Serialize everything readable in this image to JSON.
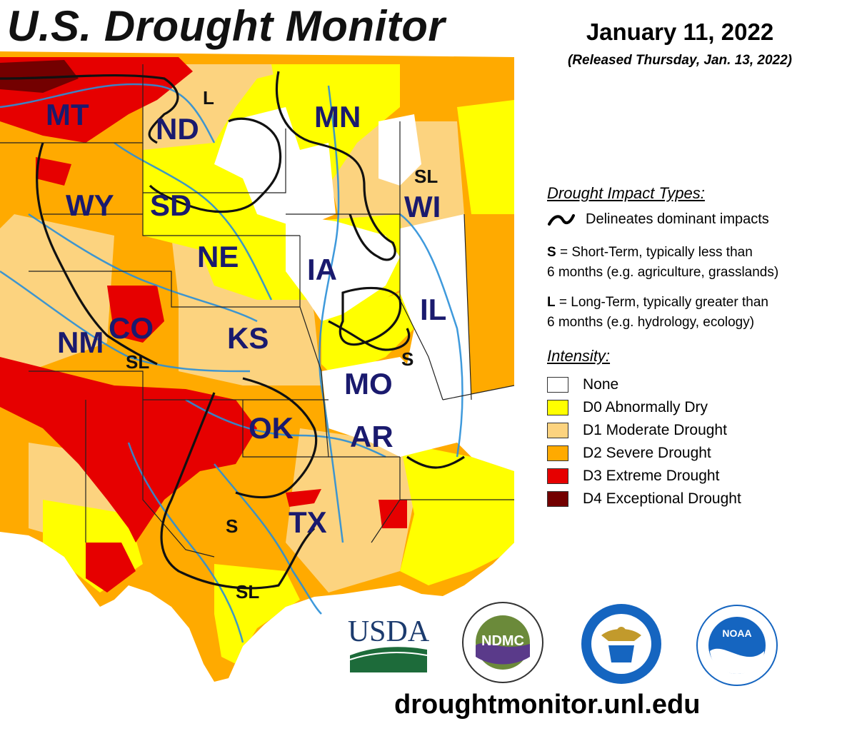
{
  "header": {
    "title": "U.S. Drought Monitor",
    "date": "January 11, 2022",
    "released": "(Released Thursday, Jan. 13, 2022)"
  },
  "legend": {
    "impact_heading": "Drought Impact Types:",
    "impact_line_label": "Delineates dominant impacts",
    "short_term_key": "S",
    "short_term_line1": "= Short-Term, typically less than",
    "short_term_line2": "6 months (e.g. agriculture, grasslands)",
    "long_term_key": "L",
    "long_term_line1": "= Long-Term, typically greater than",
    "long_term_line2": "6 months (e.g. hydrology, ecology)",
    "intensity_heading": "Intensity:",
    "categories": [
      {
        "label": "None",
        "color": "#ffffff"
      },
      {
        "label": "D0 Abnormally Dry",
        "color": "#ffff00"
      },
      {
        "label": "D1 Moderate Drought",
        "color": "#fcd37f"
      },
      {
        "label": "D2 Severe Drought",
        "color": "#ffaa00"
      },
      {
        "label": "D3 Extreme Drought",
        "color": "#e60000"
      },
      {
        "label": "D4 Exceptional Drought",
        "color": "#730000"
      }
    ]
  },
  "map": {
    "state_labels": [
      "MT",
      "ND",
      "MN",
      "WY",
      "SD",
      "WI",
      "NE",
      "IA",
      "IL",
      "CO",
      "NM",
      "KS",
      "MO",
      "OK",
      "AR",
      "TX"
    ],
    "impact_labels": [
      "L",
      "SL",
      "SL",
      "S",
      "S",
      "SL"
    ]
  },
  "logos": {
    "usda": "USDA",
    "ndmc": "NDMC",
    "noaa": "NOAA"
  },
  "footer": {
    "website": "droughtmonitor.unl.edu"
  },
  "icons": [
    "impact-line-icon",
    "usda-logo",
    "ndmc-logo",
    "commerce-seal-logo",
    "noaa-logo"
  ]
}
